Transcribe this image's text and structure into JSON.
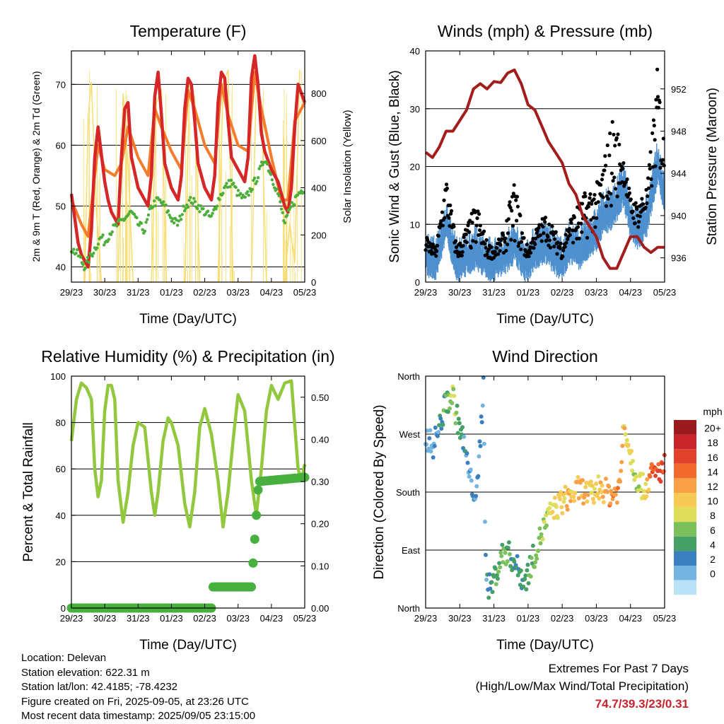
{
  "info": {
    "location": "Location: Delevan",
    "elevation": "Station elevation: 622.31 m",
    "latlon": "Station lat/lon: 42.4185; -78.4232",
    "created": "Figure created on Fri, 2025-09-05, at 23:26 UTC",
    "recent": "Most recent data timestamp: 2025/09/05 23:15:00"
  },
  "extremes": {
    "title": "Extremes For Past 7 Days",
    "subtitle": "(High/Low/Max Wind/Total Precipitation)",
    "values": "74.7/39.3/23/0.31"
  },
  "colors": {
    "temp2m": "#d62728",
    "temp9m": "#f47c2a",
    "dewpoint": "#4daf3a",
    "insolation": "#f7dc6f",
    "wind": "#4e90cf",
    "gust": "#000000",
    "pressure": "#a31d1d",
    "rh": "#92c83e",
    "precip": "#47b03f"
  },
  "colorbar": {
    "unit": "mph",
    "labels": [
      "20+",
      "18",
      "16",
      "14",
      "12",
      "10",
      "8",
      "6",
      "4",
      "2",
      "0"
    ],
    "colors": [
      "#9b1a1d",
      "#c7252a",
      "#e2422c",
      "#f26a2e",
      "#f9a046",
      "#f7c955",
      "#dede5a",
      "#7cc05c",
      "#45a066",
      "#3b7fbf",
      "#74b4e0",
      "#b9e2f6"
    ]
  },
  "chart_data": [
    {
      "type": "line",
      "title": "Temperature (F)",
      "xlabel": "Time (Day/UTC)",
      "ylabel": "2m & 9m T (Red, Orange) & 2m Td (Green)",
      "y2label": "Solar Insolation (Yellow)",
      "ylim": [
        37.5,
        75.5
      ],
      "y2lim": [
        0,
        980
      ],
      "yticks": [
        "40",
        "50",
        "60",
        "70"
      ],
      "y2ticks": [
        "0",
        "200",
        "400",
        "600",
        "800"
      ],
      "xticks": [
        "29/23",
        "30/23",
        "31/23",
        "01/23",
        "02/23",
        "03/23",
        "04/23",
        "05/23"
      ],
      "grid": "horizontal",
      "series": [
        {
          "name": "2m T",
          "x": [
            0,
            0.1,
            0.2,
            0.3,
            0.4,
            0.5,
            0.6,
            0.7,
            0.8,
            1.0,
            1.1,
            1.2,
            1.3,
            1.4,
            1.5,
            1.6,
            1.7,
            1.8,
            2.0,
            2.1,
            2.2,
            2.3,
            2.4,
            2.5,
            2.6,
            2.7,
            2.8,
            3.0,
            3.1,
            3.2,
            3.3,
            3.4,
            3.5,
            3.6,
            3.7,
            3.8,
            4.0,
            4.1,
            4.2,
            4.3,
            4.4,
            4.5,
            4.6,
            4.7,
            4.8,
            5.0,
            5.1,
            5.2,
            5.3,
            5.4,
            5.5,
            5.6,
            5.7,
            5.8,
            6.0,
            6.1,
            6.2,
            6.3,
            6.4,
            6.5,
            6.6,
            6.7,
            6.8,
            7.0
          ],
          "y": [
            52,
            48,
            44,
            42,
            41,
            40,
            46,
            58,
            63,
            54,
            51,
            49,
            48,
            47,
            58,
            66,
            67,
            58,
            53,
            52,
            51,
            50,
            55,
            68,
            72,
            65,
            57,
            53,
            52,
            51,
            55,
            66,
            71,
            70,
            64,
            57,
            53,
            52,
            51,
            55,
            67,
            72,
            71,
            64,
            58,
            56,
            55,
            54,
            58,
            71,
            74.7,
            70,
            62,
            59,
            56,
            55,
            54,
            52,
            50,
            49,
            53,
            63,
            70,
            67
          ]
        },
        {
          "name": "9m T",
          "x": [
            0,
            0.3,
            0.5,
            0.7,
            0.8,
            1.0,
            1.3,
            1.5,
            1.7,
            2.0,
            2.3,
            2.5,
            2.7,
            3.0,
            3.3,
            3.5,
            3.7,
            4.0,
            4.3,
            4.5,
            4.7,
            5.0,
            5.3,
            5.5,
            5.7,
            6.0,
            6.3,
            6.5,
            6.7,
            7.0
          ],
          "y": [
            51,
            47,
            45,
            55,
            60,
            56,
            55,
            57,
            63,
            58,
            55,
            66,
            63,
            59,
            56,
            69,
            66,
            60,
            57,
            70,
            65,
            60,
            59,
            72,
            66,
            58,
            51,
            51,
            64,
            67
          ]
        },
        {
          "name": "2m Td",
          "x": [
            0,
            0.2,
            0.4,
            0.5,
            0.7,
            0.9,
            1.0,
            1.2,
            1.4,
            1.6,
            1.8,
            2.0,
            2.2,
            2.4,
            2.6,
            2.8,
            3.0,
            3.2,
            3.4,
            3.6,
            3.8,
            4.0,
            4.2,
            4.4,
            4.6,
            4.8,
            5.0,
            5.2,
            5.4,
            5.6,
            5.8,
            6.0,
            6.2,
            6.4,
            6.6,
            6.8,
            7.0
          ],
          "y": [
            43,
            42,
            40,
            41,
            43,
            45,
            44,
            46,
            47,
            48,
            49,
            47,
            46,
            50,
            51,
            50,
            48,
            47,
            50,
            51,
            50,
            49,
            48,
            51,
            53,
            54,
            52,
            51,
            53,
            55,
            58,
            55,
            52,
            47,
            50,
            52,
            53
          ]
        },
        {
          "name": "Solar Insolation",
          "x": [
            0.4,
            0.5,
            0.6,
            0.75,
            0.9,
            1.4,
            1.55,
            1.7,
            1.85,
            2.4,
            2.55,
            2.7,
            2.85,
            3.4,
            3.55,
            3.7,
            3.85,
            4.4,
            4.55,
            4.7,
            4.85,
            5.4,
            5.55,
            5.7,
            5.85,
            6.4,
            6.55,
            6.7,
            6.85
          ],
          "y": [
            0,
            700,
            850,
            300,
            0,
            0,
            800,
            500,
            0,
            0,
            760,
            820,
            0,
            0,
            860,
            780,
            0,
            0,
            840,
            900,
            0,
            0,
            850,
            760,
            0,
            0,
            250,
            80,
            900
          ]
        }
      ]
    },
    {
      "type": "line",
      "title": "Winds (mph) & Pressure (mb)",
      "xlabel": "Time (Day/UTC)",
      "ylabel": "Sonic Wind & Gust (Blue, Black)",
      "y2label": "Station Pressure (Maroon)",
      "ylim": [
        0,
        40
      ],
      "y2lim": [
        933.7,
        955.6
      ],
      "yticks": [
        "0",
        "10",
        "20",
        "30",
        "40"
      ],
      "y2ticks": [
        "936",
        "940",
        "944",
        "948",
        "952"
      ],
      "xticks": [
        "29/23",
        "30/23",
        "31/23",
        "01/23",
        "02/23",
        "03/23",
        "04/23",
        "05/23"
      ],
      "grid": "horizontal",
      "series": [
        {
          "name": "Station Pressure",
          "x": [
            0,
            0.2,
            0.4,
            0.6,
            0.8,
            1.0,
            1.2,
            1.4,
            1.6,
            1.8,
            2.0,
            2.2,
            2.4,
            2.6,
            2.8,
            3.0,
            3.2,
            3.4,
            3.6,
            3.8,
            4.0,
            4.2,
            4.4,
            4.6,
            4.8,
            5.0,
            5.2,
            5.4,
            5.6,
            5.8,
            6.0,
            6.2,
            6.4,
            6.6,
            6.8,
            7.0
          ],
          "y": [
            946,
            945.5,
            946.5,
            948,
            948,
            949,
            950,
            952,
            952.5,
            952,
            952.7,
            952.6,
            953.5,
            953.8,
            952.5,
            950.5,
            950,
            948.5,
            947,
            946,
            945,
            943,
            942,
            940,
            939,
            938,
            936,
            935,
            935,
            936.5,
            938,
            938,
            937,
            936.5,
            937,
            937
          ]
        },
        {
          "name": "Sonic Wind",
          "x": [
            0,
            0.3,
            0.6,
            0.9,
            1.0,
            1.2,
            1.5,
            1.8,
            2.0,
            2.3,
            2.6,
            2.9,
            3.0,
            3.2,
            3.5,
            3.8,
            4.0,
            4.2,
            4.5,
            4.8,
            5.0,
            5.2,
            5.5,
            5.8,
            6.0,
            6.2,
            6.5,
            6.8,
            7.0
          ],
          "y": [
            5,
            4,
            11,
            4,
            4,
            5,
            6,
            4,
            4,
            5,
            7,
            4,
            4,
            6,
            7,
            5,
            4,
            7,
            6,
            8,
            9,
            12,
            13,
            17,
            11,
            9,
            12,
            21,
            15
          ]
        },
        {
          "name": "Gust",
          "x": [
            0,
            0.3,
            0.6,
            0.9,
            1.0,
            1.2,
            1.5,
            1.8,
            2.0,
            2.3,
            2.6,
            2.9,
            3.0,
            3.2,
            3.5,
            3.8,
            4.0,
            4.2,
            4.5,
            4.8,
            5.0,
            5.2,
            5.5,
            5.8,
            6.0,
            6.2,
            6.5,
            6.8,
            7.0
          ],
          "y": [
            8,
            6,
            19,
            7,
            7,
            10,
            14,
            7,
            6,
            9,
            18,
            8,
            6,
            9,
            12,
            9,
            7,
            11,
            14,
            17,
            17,
            21,
            30,
            22,
            15,
            14,
            17,
            38,
            24
          ]
        }
      ]
    },
    {
      "type": "line",
      "title": "Relative Humidity (%) & Precipitation (in)",
      "xlabel": "Time (Day/UTC)",
      "ylabel": "Percent & Total Rainfall",
      "ylim": [
        0,
        100
      ],
      "y2lim": [
        0,
        0.55
      ],
      "yticks": [
        "0",
        "20",
        "40",
        "60",
        "80",
        "100"
      ],
      "y2ticks": [
        "0.00",
        "0.10",
        "0.20",
        "0.30",
        "0.40",
        "0.50"
      ],
      "xticks": [
        "29/23",
        "30/23",
        "31/23",
        "01/23",
        "02/23",
        "03/23",
        "04/23",
        "05/23"
      ],
      "grid": "horizontal",
      "series": [
        {
          "name": "Relative Humidity",
          "x": [
            0,
            0.15,
            0.3,
            0.45,
            0.6,
            0.7,
            0.8,
            0.9,
            1.0,
            1.1,
            1.2,
            1.3,
            1.4,
            1.55,
            1.7,
            1.85,
            2.0,
            2.2,
            2.4,
            2.5,
            2.6,
            2.75,
            2.9,
            3.0,
            3.2,
            3.4,
            3.55,
            3.7,
            3.85,
            4.0,
            4.2,
            4.4,
            4.55,
            4.7,
            4.85,
            5.0,
            5.2,
            5.4,
            5.55,
            5.7,
            5.85,
            6.0,
            6.2,
            6.4,
            6.6,
            6.8,
            6.9,
            7.0
          ],
          "y": [
            72,
            90,
            97,
            95,
            90,
            60,
            48,
            55,
            85,
            96,
            96,
            90,
            55,
            37,
            50,
            70,
            80,
            78,
            50,
            40,
            50,
            72,
            82,
            80,
            70,
            45,
            35,
            50,
            78,
            86,
            75,
            55,
            35,
            50,
            72,
            92,
            85,
            55,
            40,
            60,
            85,
            96,
            90,
            97,
            98,
            60,
            55,
            62
          ]
        },
        {
          "name": "Total Precipitation",
          "x": [
            0,
            4.2,
            4.21,
            5.4,
            5.55,
            5.6,
            5.61,
            7.0
          ],
          "y": [
            0,
            0,
            0.05,
            0.05,
            0.22,
            0.28,
            0.3,
            0.31
          ]
        }
      ]
    },
    {
      "type": "scatter",
      "title": "Wind Direction",
      "xlabel": "Time (Day/UTC)",
      "ylabel": "Direction (Colored By Speed)",
      "yticks": [
        "North",
        "East",
        "South",
        "West",
        "North"
      ],
      "xticks": [
        "29/23",
        "30/23",
        "31/23",
        "01/23",
        "02/23",
        "03/23",
        "04/23",
        "05/23"
      ],
      "grid": "horizontal",
      "series": [
        {
          "name": "Wind Direction",
          "x": [
            0,
            0.2,
            0.4,
            0.6,
            0.8,
            0.9,
            1.0,
            1.1,
            1.3,
            1.5,
            1.7,
            1.75,
            1.8,
            1.9,
            2.1,
            2.3,
            2.5,
            2.7,
            2.9,
            3.1,
            3.3,
            3.5,
            3.7,
            3.9,
            4.1,
            4.3,
            4.5,
            4.7,
            4.9,
            5.1,
            5.3,
            5.5,
            5.7,
            5.8,
            6.0,
            6.2,
            6.4,
            6.6,
            6.8,
            7.0
          ],
          "y": [
            270,
            250,
            280,
            320,
            330,
            300,
            280,
            260,
            200,
            170,
            350,
            90,
            40,
            30,
            60,
            90,
            80,
            60,
            40,
            70,
            100,
            130,
            150,
            160,
            170,
            175,
            185,
            180,
            175,
            190,
            180,
            175,
            190,
            290,
            240,
            200,
            185,
            205,
            210,
            220
          ],
          "speed": [
            3,
            3,
            4,
            7,
            10,
            8,
            6,
            4,
            3,
            3,
            4,
            3,
            4,
            5,
            7,
            8,
            6,
            5,
            6,
            7,
            8,
            9,
            10,
            11,
            12,
            12,
            13,
            12,
            11,
            12,
            14,
            15,
            14,
            12,
            10,
            9,
            10,
            16,
            18,
            17
          ]
        }
      ]
    }
  ]
}
